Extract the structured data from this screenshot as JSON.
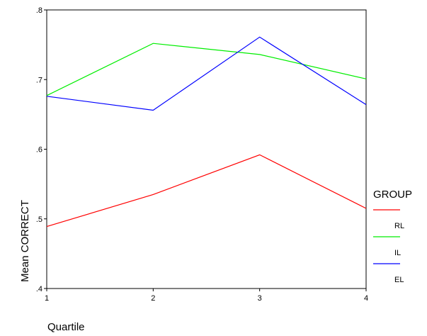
{
  "chart_data": {
    "type": "line",
    "xlabel": "Quartile",
    "ylabel": "Mean CORRECT",
    "x": [
      1,
      2,
      3,
      4
    ],
    "x_tick_labels": [
      "1",
      "2",
      "3",
      "4"
    ],
    "ylim": [
      0.4,
      0.8
    ],
    "y_ticks": [
      0.4,
      0.5,
      0.6,
      0.7,
      0.8
    ],
    "y_tick_labels": [
      ".4",
      ".5",
      ".6",
      ".7",
      ".8"
    ],
    "grid": false,
    "legend": {
      "title": "GROUP",
      "placement": "right"
    },
    "series": [
      {
        "name": "RL",
        "color": "#ff0000",
        "values": [
          0.489,
          0.535,
          0.592,
          0.515
        ]
      },
      {
        "name": "IL",
        "color": "#00ee00",
        "values": [
          0.677,
          0.752,
          0.736,
          0.701
        ]
      },
      {
        "name": "EL",
        "color": "#0000ff",
        "values": [
          0.676,
          0.656,
          0.761,
          0.664
        ]
      }
    ]
  }
}
